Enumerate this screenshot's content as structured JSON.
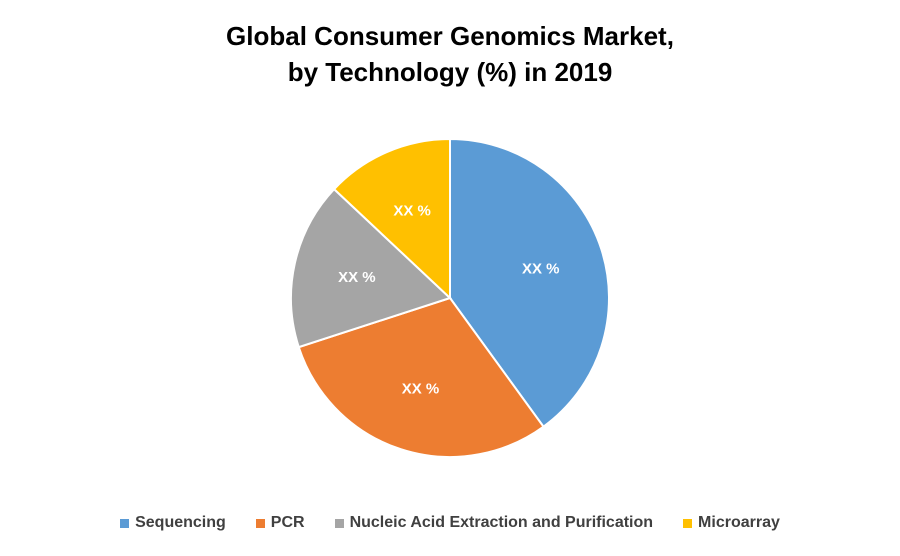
{
  "chart_data": {
    "type": "pie",
    "title": [
      "Global Consumer Genomics Market,",
      "by Technology (%) in 2019"
    ],
    "slices": [
      {
        "name": "Sequencing",
        "value": 40,
        "label": "XX %",
        "color": "#5B9BD5"
      },
      {
        "name": "PCR",
        "value": 30,
        "label": "XX %",
        "color": "#ED7D31"
      },
      {
        "name": "Nucleic Acid Extraction and Purification",
        "value": 17,
        "label": "XX %",
        "color": "#A5A5A5"
      },
      {
        "name": "Microarray",
        "value": 13,
        "label": "XX %",
        "color": "#FFC000"
      }
    ],
    "legend_position": "bottom"
  }
}
